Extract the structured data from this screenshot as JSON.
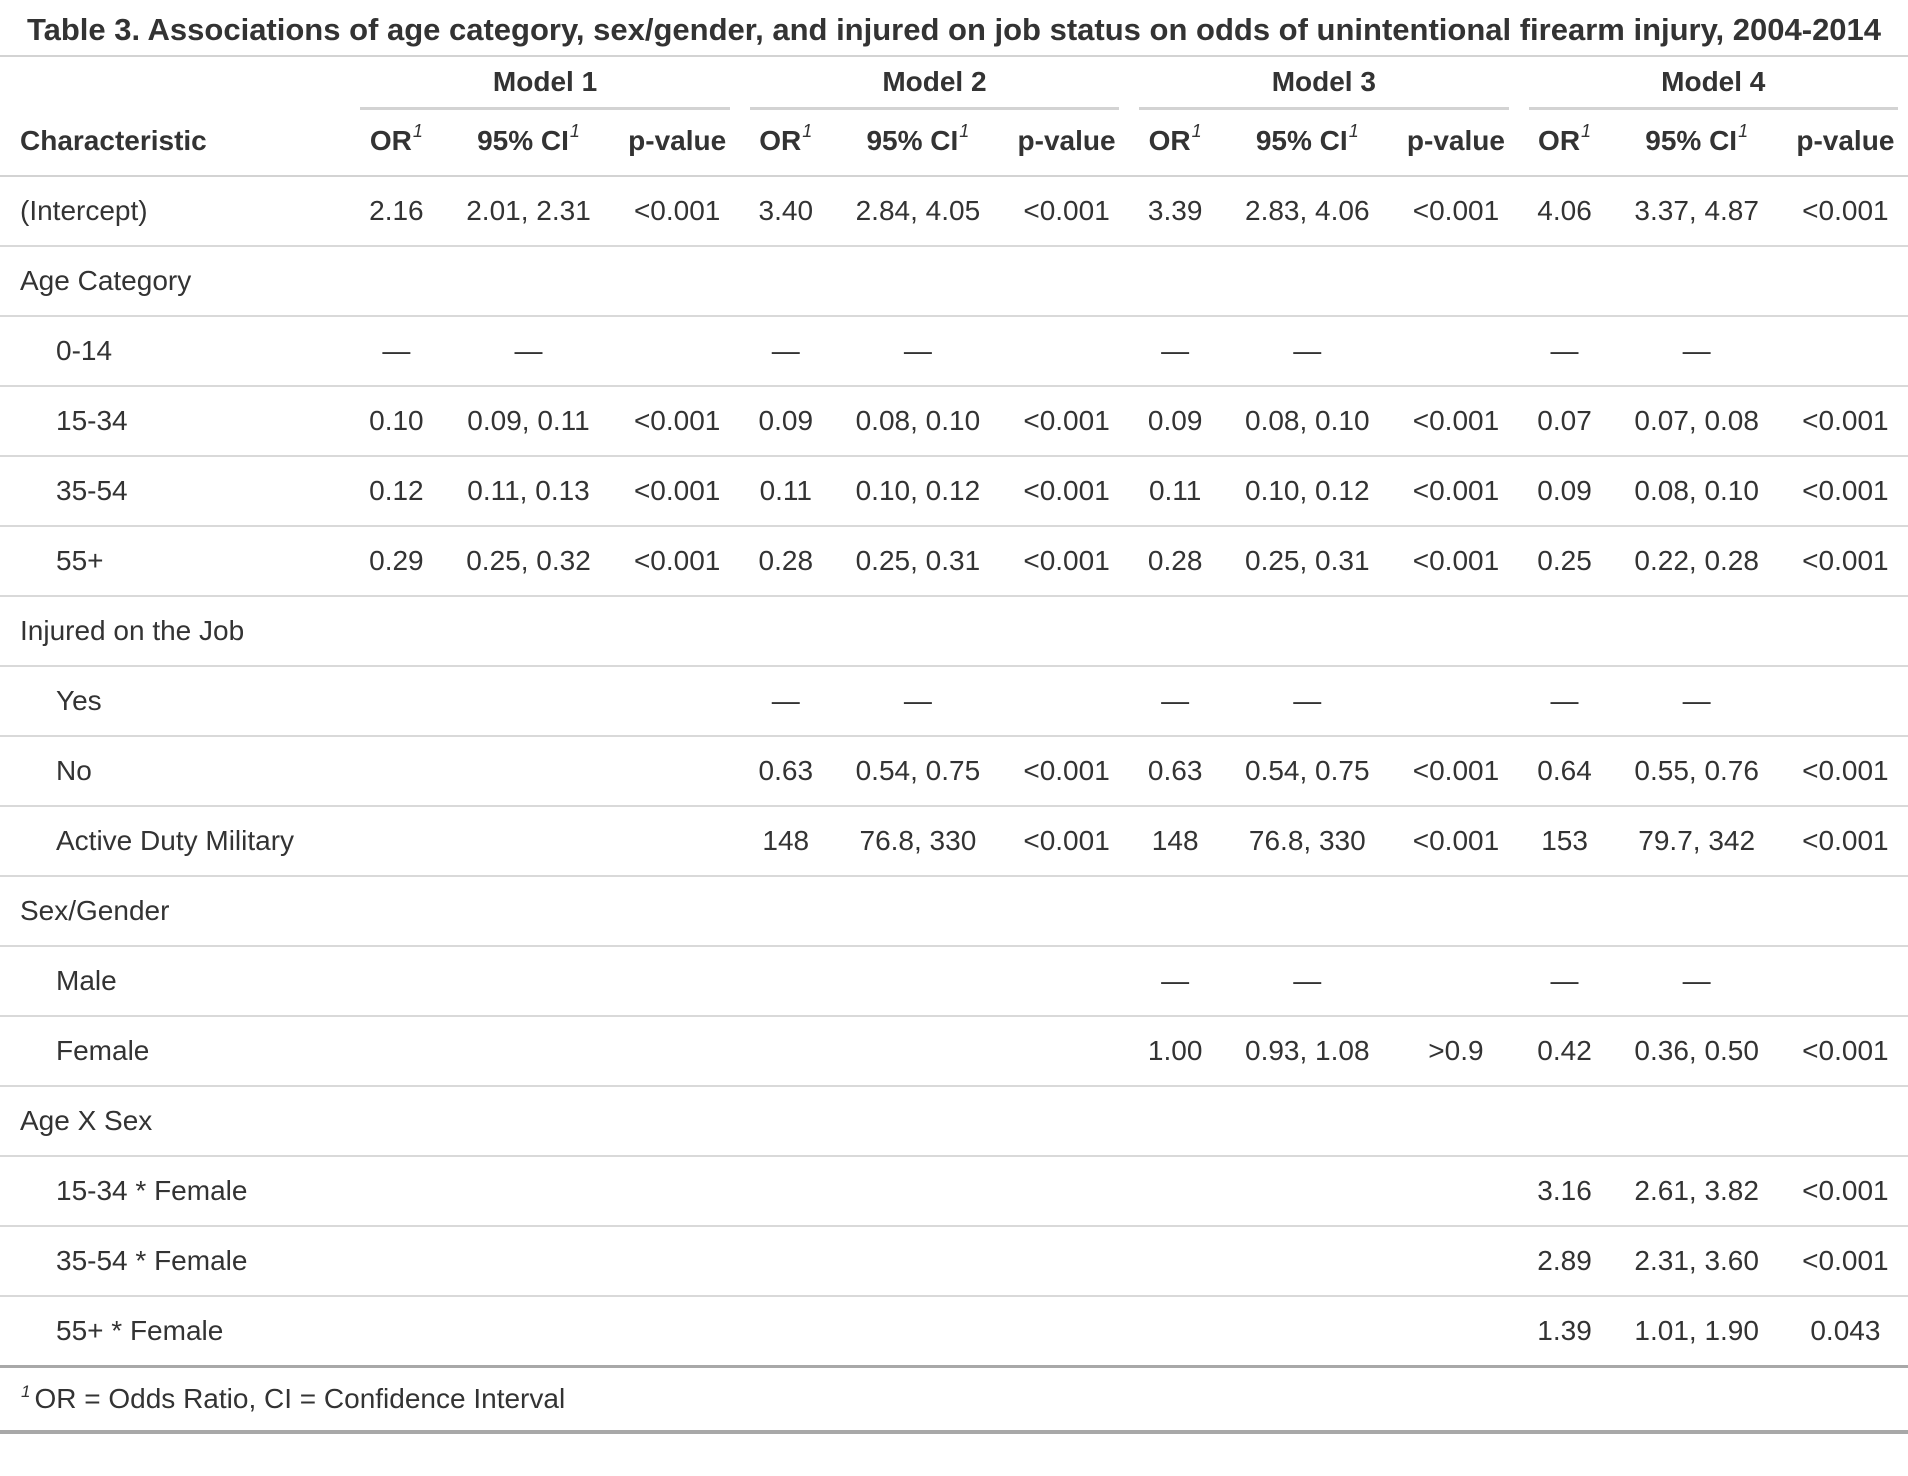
{
  "chart_data": {
    "type": "table",
    "title": "Table 3. Associations of age category, sex/gender, and injured on job status on odds of unintentional firearm injury, 2004-2014",
    "stub_header": "Characteristic",
    "spanners": [
      "Model 1",
      "Model 2",
      "Model 3",
      "Model 4"
    ],
    "sub_headers": [
      "OR",
      "95% CI",
      "p-value"
    ],
    "footnote_marker": "1",
    "footnote": "OR = Odds Ratio, CI = Confidence Interval",
    "empty_symbol": "—",
    "rows": [
      {
        "label": "(Intercept)",
        "type": "data",
        "indent": false,
        "cells": [
          "2.16",
          "2.01, 2.31",
          "<0.001",
          "3.40",
          "2.84, 4.05",
          "<0.001",
          "3.39",
          "2.83, 4.06",
          "<0.001",
          "4.06",
          "3.37, 4.87",
          "<0.001"
        ]
      },
      {
        "label": "Age Category",
        "type": "group",
        "indent": false,
        "cells": [
          "",
          "",
          "",
          "",
          "",
          "",
          "",
          "",
          "",
          "",
          "",
          ""
        ]
      },
      {
        "label": "0-14",
        "type": "data",
        "indent": true,
        "cells": [
          "—",
          "—",
          "",
          "—",
          "—",
          "",
          "—",
          "—",
          "",
          "—",
          "—",
          ""
        ]
      },
      {
        "label": "15-34",
        "type": "data",
        "indent": true,
        "cells": [
          "0.10",
          "0.09, 0.11",
          "<0.001",
          "0.09",
          "0.08, 0.10",
          "<0.001",
          "0.09",
          "0.08, 0.10",
          "<0.001",
          "0.07",
          "0.07, 0.08",
          "<0.001"
        ]
      },
      {
        "label": "35-54",
        "type": "data",
        "indent": true,
        "cells": [
          "0.12",
          "0.11, 0.13",
          "<0.001",
          "0.11",
          "0.10, 0.12",
          "<0.001",
          "0.11",
          "0.10, 0.12",
          "<0.001",
          "0.09",
          "0.08, 0.10",
          "<0.001"
        ]
      },
      {
        "label": "55+",
        "type": "data",
        "indent": true,
        "cells": [
          "0.29",
          "0.25, 0.32",
          "<0.001",
          "0.28",
          "0.25, 0.31",
          "<0.001",
          "0.28",
          "0.25, 0.31",
          "<0.001",
          "0.25",
          "0.22, 0.28",
          "<0.001"
        ]
      },
      {
        "label": "Injured on the Job",
        "type": "group",
        "indent": false,
        "cells": [
          "",
          "",
          "",
          "",
          "",
          "",
          "",
          "",
          "",
          "",
          "",
          ""
        ]
      },
      {
        "label": "Yes",
        "type": "data",
        "indent": true,
        "cells": [
          "",
          "",
          "",
          "—",
          "—",
          "",
          "—",
          "—",
          "",
          "—",
          "—",
          ""
        ]
      },
      {
        "label": "No",
        "type": "data",
        "indent": true,
        "cells": [
          "",
          "",
          "",
          "0.63",
          "0.54, 0.75",
          "<0.001",
          "0.63",
          "0.54, 0.75",
          "<0.001",
          "0.64",
          "0.55, 0.76",
          "<0.001"
        ]
      },
      {
        "label": "Active Duty Military",
        "type": "data",
        "indent": true,
        "cells": [
          "",
          "",
          "",
          "148",
          "76.8, 330",
          "<0.001",
          "148",
          "76.8, 330",
          "<0.001",
          "153",
          "79.7, 342",
          "<0.001"
        ]
      },
      {
        "label": "Sex/Gender",
        "type": "group",
        "indent": false,
        "cells": [
          "",
          "",
          "",
          "",
          "",
          "",
          "",
          "",
          "",
          "",
          "",
          ""
        ]
      },
      {
        "label": "Male",
        "type": "data",
        "indent": true,
        "cells": [
          "",
          "",
          "",
          "",
          "",
          "",
          "—",
          "—",
          "",
          "—",
          "—",
          ""
        ]
      },
      {
        "label": "Female",
        "type": "data",
        "indent": true,
        "cells": [
          "",
          "",
          "",
          "",
          "",
          "",
          "1.00",
          "0.93, 1.08",
          ">0.9",
          "0.42",
          "0.36, 0.50",
          "<0.001"
        ]
      },
      {
        "label": "Age X Sex",
        "type": "group",
        "indent": false,
        "cells": [
          "",
          "",
          "",
          "",
          "",
          "",
          "",
          "",
          "",
          "",
          "",
          ""
        ]
      },
      {
        "label": "15-34 * Female",
        "type": "data",
        "indent": true,
        "cells": [
          "",
          "",
          "",
          "",
          "",
          "",
          "",
          "",
          "",
          "3.16",
          "2.61, 3.82",
          "<0.001"
        ]
      },
      {
        "label": "35-54 * Female",
        "type": "data",
        "indent": true,
        "cells": [
          "",
          "",
          "",
          "",
          "",
          "",
          "",
          "",
          "",
          "2.89",
          "2.31, 3.60",
          "<0.001"
        ]
      },
      {
        "label": "55+ * Female",
        "type": "data",
        "indent": true,
        "cells": [
          "",
          "",
          "",
          "",
          "",
          "",
          "",
          "",
          "",
          "1.39",
          "1.01, 1.90",
          "0.043"
        ]
      }
    ]
  },
  "colors": {
    "text": "#333333",
    "border_light": "#D3D3D3",
    "border_row": "#D9D9D9",
    "border_dark": "#A8A8A8",
    "background": "#FFFFFF"
  }
}
